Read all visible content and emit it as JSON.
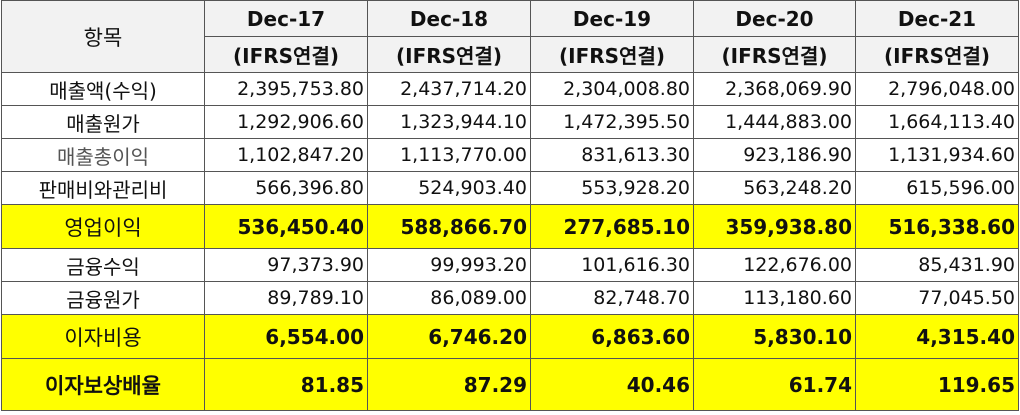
{
  "header": {
    "item_label": "항목",
    "years": [
      "Dec-17",
      "Dec-18",
      "Dec-19",
      "Dec-20",
      "Dec-21"
    ],
    "basis": [
      "(IFRS연결)",
      "(IFRS연결)",
      "(IFRS연결)",
      "(IFRS연결)",
      "(IFRS연결)"
    ]
  },
  "rows": [
    {
      "label": "매출액(수익)",
      "values": [
        "2,395,753.80",
        "2,437,714.20",
        "2,304,008.80",
        "2,368,069.90",
        "2,796,048.00"
      ]
    },
    {
      "label": "매출원가",
      "values": [
        "1,292,906.60",
        "1,323,944.10",
        "1,472,395.50",
        "1,444,883.00",
        "1,664,113.40"
      ]
    },
    {
      "label": "매출총이익",
      "values": [
        "1,102,847.20",
        "1,113,770.00",
        "831,613.30",
        "923,186.90",
        "1,131,934.60"
      ]
    },
    {
      "label": "판매비와관리비",
      "values": [
        "566,396.80",
        "524,903.40",
        "553,928.20",
        "563,248.20",
        "615,596.00"
      ]
    },
    {
      "label": "영업이익",
      "values": [
        "536,450.40",
        "588,866.70",
        "277,685.10",
        "359,938.80",
        "516,338.60"
      ]
    },
    {
      "label": "금융수익",
      "values": [
        "97,373.90",
        "99,993.20",
        "101,616.30",
        "122,676.00",
        "85,431.90"
      ]
    },
    {
      "label": "금융원가",
      "values": [
        "89,789.10",
        "86,089.00",
        "82,748.70",
        "113,180.60",
        "77,045.50"
      ]
    },
    {
      "label": "이자비용",
      "values": [
        "6,554.00",
        "6,746.20",
        "6,863.60",
        "5,830.10",
        "4,315.40"
      ]
    },
    {
      "label": "이자보상배율",
      "values": [
        "81.85",
        "87.29",
        "40.46",
        "61.74",
        "119.65"
      ]
    }
  ],
  "highlight_color": "#ffff00"
}
